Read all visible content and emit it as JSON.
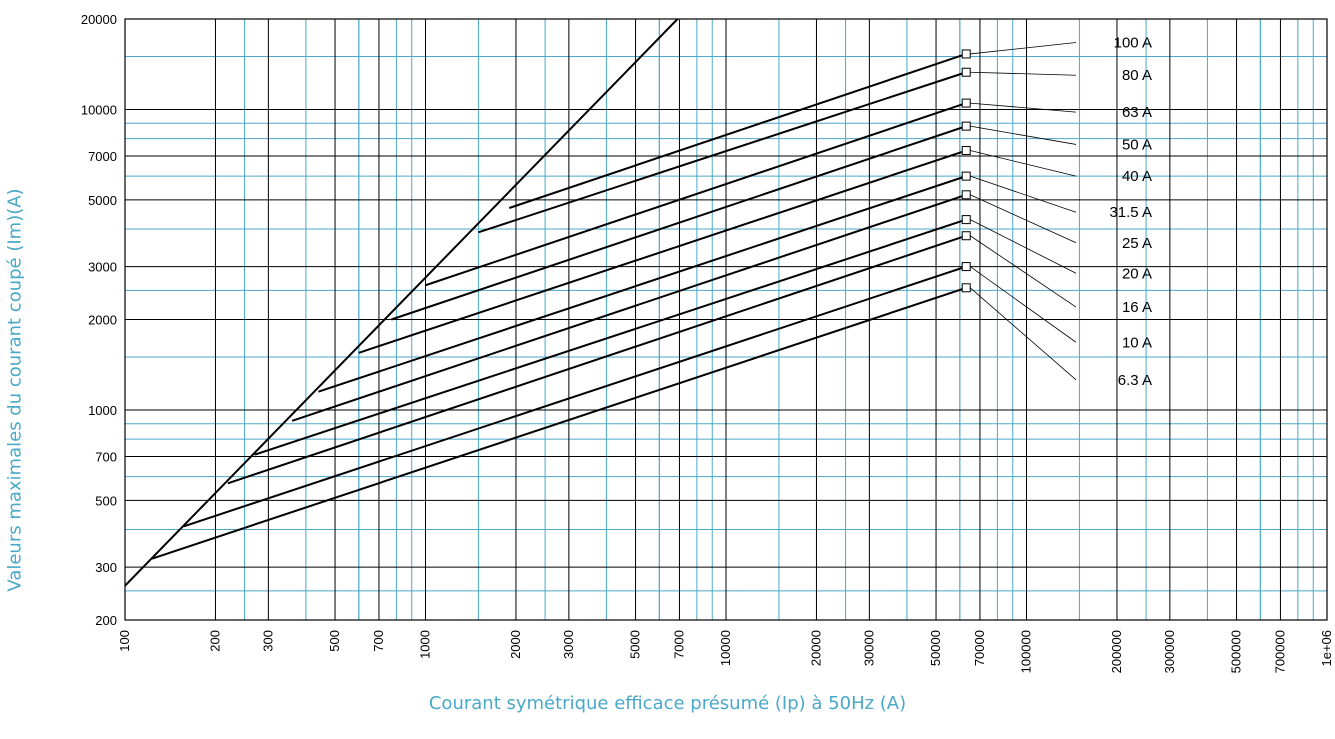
{
  "chart_data": {
    "type": "line",
    "title": "",
    "xlabel": "Courant symétrique efficace présumé (Ip) à 50Hz (A)",
    "ylabel": "Valeurs maximales du courant coupé (Im)(A)",
    "xscale": "log",
    "yscale": "log",
    "xlim": [
      100,
      1000000
    ],
    "ylim": [
      200,
      20000
    ],
    "grid": true,
    "x_ticks": [
      100,
      200,
      300,
      500,
      700,
      1000,
      2000,
      3000,
      5000,
      7000,
      10000,
      20000,
      30000,
      50000,
      70000,
      100000,
      200000,
      300000,
      500000,
      700000,
      1000000
    ],
    "x_tick_labels": [
      "100",
      "200",
      "300",
      "500",
      "700",
      "1000",
      "2000",
      "3000",
      "5000",
      "7000",
      "10000",
      "20000",
      "30000",
      "50000",
      "70000",
      "100000",
      "200000",
      "300000",
      "500000",
      "700000",
      "1e+06"
    ],
    "y_ticks": [
      200,
      300,
      500,
      700,
      1000,
      2000,
      3000,
      5000,
      7000,
      10000,
      20000
    ],
    "y_tick_labels": [
      "200",
      "300",
      "500",
      "700",
      "1000",
      "2000",
      "3000",
      "5000",
      "7000",
      "10000",
      "20000"
    ],
    "envelope": {
      "x": [
        100,
        6900
      ],
      "y": [
        260,
        20000
      ]
    },
    "series": [
      {
        "name": "100 A",
        "x": [
          1900,
          63000
        ],
        "y": [
          4700,
          15300
        ]
      },
      {
        "name": "80 A",
        "x": [
          1500,
          63000
        ],
        "y": [
          3900,
          13300
        ]
      },
      {
        "name": "63 A",
        "x": [
          1000,
          63000
        ],
        "y": [
          2600,
          10500
        ]
      },
      {
        "name": "50 A",
        "x": [
          770,
          63000
        ],
        "y": [
          2000,
          8800
        ]
      },
      {
        "name": "40 A",
        "x": [
          600,
          63000
        ],
        "y": [
          1550,
          7300
        ]
      },
      {
        "name": "31.5 A",
        "x": [
          440,
          63000
        ],
        "y": [
          1150,
          6000
        ]
      },
      {
        "name": "25 A",
        "x": [
          360,
          63000
        ],
        "y": [
          920,
          5200
        ]
      },
      {
        "name": "20 A",
        "x": [
          270,
          63000
        ],
        "y": [
          710,
          4300
        ]
      },
      {
        "name": "16 A",
        "x": [
          220,
          63000
        ],
        "y": [
          570,
          3800
        ]
      },
      {
        "name": "10 A",
        "x": [
          157,
          63000
        ],
        "y": [
          410,
          3000
        ]
      },
      {
        "name": "6.3 A",
        "x": [
          123,
          63000
        ],
        "y": [
          320,
          2550
        ]
      }
    ],
    "annotation_y": [
      16700,
      13000,
      9800,
      7650,
      6000,
      4550,
      3600,
      2850,
      2200,
      1680,
      1260
    ]
  }
}
